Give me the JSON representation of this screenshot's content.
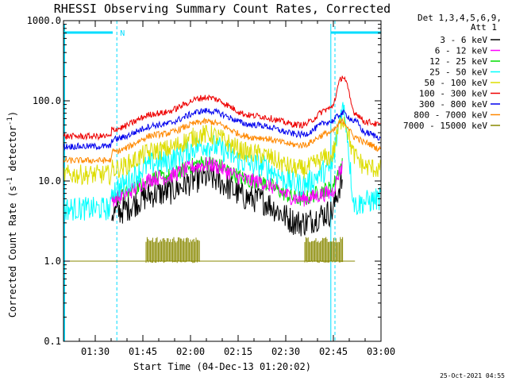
{
  "chart_data": {
    "type": "line",
    "title": "RHESSI Observing Summary Count Rates, Corrected",
    "xlabel": "Start Time (04-Dec-13 01:20:02)",
    "ylabel": "Corrected Count Rate (s⁻¹ detector⁻¹)",
    "ylabel_parts": {
      "main": "Corrected Count Rate (s",
      "sup1": "-1",
      "mid": " detector",
      "sup2": "-1",
      "end": ")"
    },
    "y_scale": "log",
    "ylim": [
      0.1,
      1000.0
    ],
    "xlim_minutes_after_0120": [
      0,
      100
    ],
    "y_ticks": [
      "1000.0",
      "100.0",
      "10.0",
      "1.0",
      "0.1"
    ],
    "x_ticks": [
      "01:30",
      "01:45",
      "02:00",
      "02:15",
      "02:30",
      "02:45",
      "03:00"
    ],
    "legend_header": [
      "Det 1,3,4,5,6,9,",
      "Att 1"
    ],
    "timestamp": "25-Oct-2021 04:55",
    "flag_label": "N",
    "grid": false,
    "legend_position": "right",
    "series": [
      {
        "name": "3 - 6 keV",
        "color": "#000000"
      },
      {
        "name": "6 - 12 keV",
        "color": "#ff00ff"
      },
      {
        "name": "12 - 25 keV",
        "color": "#00dd00"
      },
      {
        "name": "25 - 50 keV",
        "color": "#00ffff"
      },
      {
        "name": "50 - 100 keV",
        "color": "#dddd00"
      },
      {
        "name": "100 - 300 keV",
        "color": "#ee0000"
      },
      {
        "name": "300 - 800 keV",
        "color": "#0000ee"
      },
      {
        "name": "800 - 7000 keV",
        "color": "#ff8800"
      },
      {
        "name": "7000 - 15000 keV",
        "color": "#888800"
      }
    ],
    "series_values": {
      "x_minutes": [
        0,
        15,
        15.1,
        30,
        45,
        60,
        75,
        84,
        88,
        92,
        95,
        100
      ],
      "3 - 6 keV": [
        null,
        null,
        4,
        7,
        11,
        6,
        3,
        4,
        10,
        null,
        null,
        null
      ],
      "6 - 12 keV": [
        null,
        null,
        6,
        11,
        16,
        10,
        6,
        7,
        15,
        null,
        null,
        null
      ],
      "12 - 25 keV": [
        null,
        null,
        6,
        11,
        17,
        10,
        6,
        8,
        16,
        null,
        null,
        null
      ],
      "25 - 50 keV": [
        4.5,
        4.5,
        8,
        17,
        28,
        16,
        9,
        14,
        80,
        5,
        5.5,
        6
      ],
      "50 - 100 keV": [
        12,
        12,
        14,
        24,
        38,
        22,
        14,
        20,
        60,
        20,
        15,
        14
      ],
      "100 - 300 keV": [
        36,
        36,
        44,
        70,
        110,
        65,
        50,
        80,
        200,
        70,
        55,
        50
      ],
      "300 - 800 keV": [
        27,
        27,
        33,
        50,
        75,
        50,
        38,
        55,
        70,
        55,
        40,
        35
      ],
      "800 - 7000 keV": [
        18,
        18,
        23,
        38,
        55,
        35,
        28,
        40,
        55,
        35,
        30,
        25
      ],
      "7000 - 15000 keV": [
        1.0,
        1.0,
        1.0,
        1.0,
        1.0,
        1.0,
        1.0,
        1.0,
        1.0,
        1.0,
        null,
        null
      ]
    },
    "shaded_markers_minutes": [
      16.8,
      85.5,
      100
    ]
  }
}
